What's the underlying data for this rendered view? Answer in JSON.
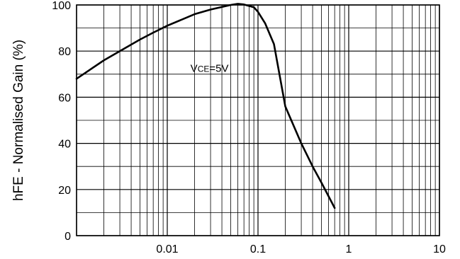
{
  "chart_data": {
    "type": "line",
    "title": "",
    "xlabel": "",
    "ylabel": "hFE - Normalised Gain (%)",
    "x_scale": "log",
    "xlim": [
      0.001,
      10
    ],
    "ylim": [
      0,
      100
    ],
    "grid": true,
    "x_ticks": [
      {
        "value": 0.01,
        "label": "0.01"
      },
      {
        "value": 0.1,
        "label": "0.1"
      },
      {
        "value": 1,
        "label": "1"
      },
      {
        "value": 10,
        "label": "10"
      }
    ],
    "y_ticks": [
      {
        "value": 0,
        "label": "0"
      },
      {
        "value": 20,
        "label": "20"
      },
      {
        "value": 40,
        "label": "40"
      },
      {
        "value": 60,
        "label": "60"
      },
      {
        "value": 80,
        "label": "80"
      },
      {
        "value": 100,
        "label": "100"
      }
    ],
    "annotation": {
      "main": "V",
      "sub": "CE",
      "suffix": "=5V",
      "x": 0.018,
      "y": 71
    },
    "series": [
      {
        "color": "#000000",
        "x": [
          0.001,
          0.002,
          0.003,
          0.005,
          0.007,
          0.01,
          0.02,
          0.03,
          0.05,
          0.06,
          0.07,
          0.09,
          0.1,
          0.12,
          0.15,
          0.2,
          0.3,
          0.4,
          0.5,
          0.7
        ],
        "y": [
          68,
          76,
          80,
          85,
          88,
          91,
          96,
          98,
          100,
          100.5,
          100.2,
          99,
          97,
          92,
          83,
          56,
          40,
          30,
          23,
          12
        ]
      }
    ]
  }
}
